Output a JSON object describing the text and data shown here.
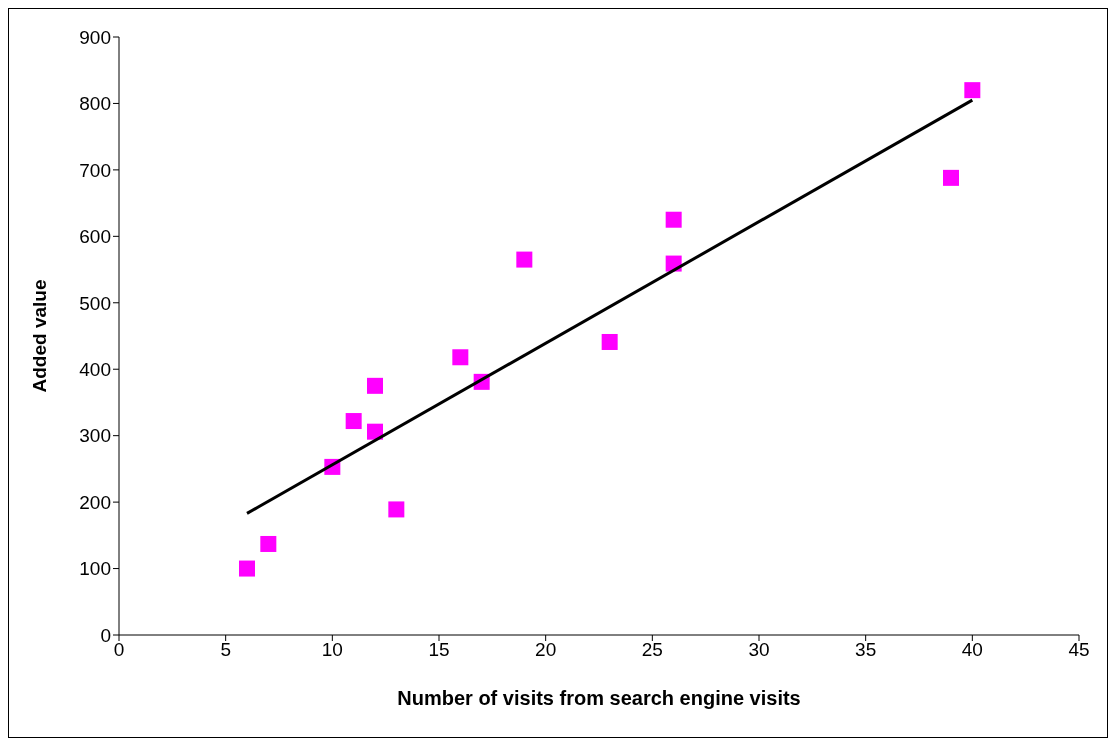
{
  "chart_data": {
    "type": "scatter",
    "xlabel": "Number of visits from search engine visits",
    "ylabel": "Added value",
    "xlim": [
      0,
      45
    ],
    "xticks": [
      0,
      5,
      10,
      15,
      20,
      25,
      30,
      35,
      40,
      45
    ],
    "ylim": [
      0,
      900
    ],
    "yticks": [
      0,
      100,
      200,
      300,
      400,
      500,
      600,
      700,
      800,
      900
    ],
    "grid": false,
    "legend": false,
    "series": [
      {
        "marker": "square",
        "color": "#ff00ff",
        "x": [
          6,
          7,
          10,
          11,
          12,
          12,
          13,
          16,
          17,
          19,
          23,
          26,
          26,
          39,
          40
        ],
        "values": [
          100,
          137,
          253,
          322,
          375,
          306,
          189,
          418,
          381,
          565,
          441,
          625,
          559,
          688,
          820
        ]
      },
      {
        "type": "line",
        "marker": "none",
        "color": "#000000",
        "x": [
          6,
          40
        ],
        "values": [
          183,
          805
        ]
      }
    ]
  }
}
